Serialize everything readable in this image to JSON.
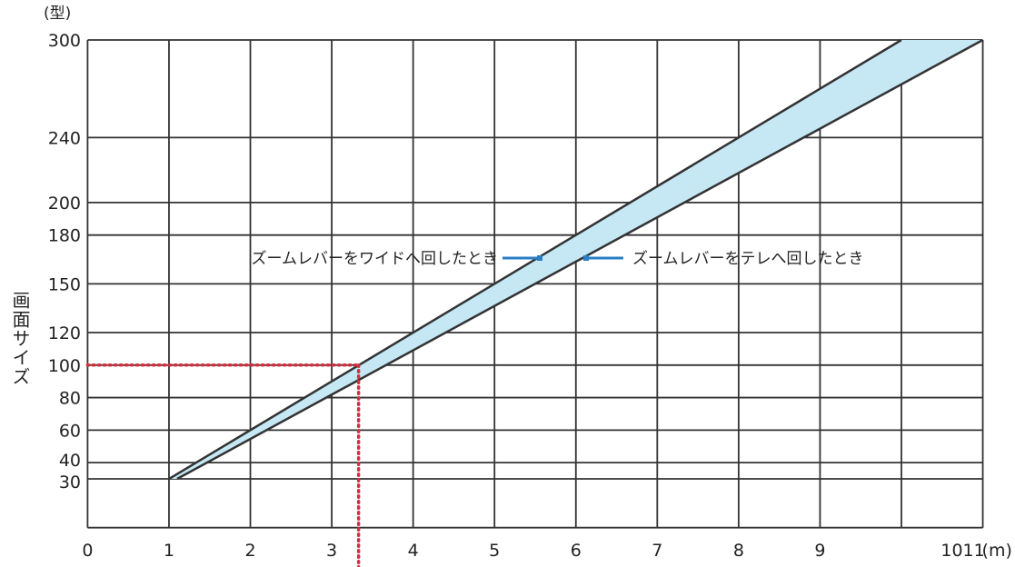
{
  "chart_data": {
    "type": "area",
    "title": "",
    "xlabel": "",
    "x_unit": "(m)",
    "ylabel": "画面サイズ",
    "y_unit": "(型)",
    "xlim": [
      0,
      11
    ],
    "ylim": [
      0,
      300
    ],
    "grid": true,
    "x_ticks": [
      "0",
      "1",
      "2",
      "3",
      "4",
      "5",
      "6",
      "7",
      "8",
      "9",
      "10",
      "11"
    ],
    "y_ticks": [
      30,
      40,
      60,
      80,
      100,
      120,
      150,
      180,
      200,
      240,
      300
    ],
    "series": [
      {
        "name": "ズームレバーをワイドへ回したとき",
        "x": [
          1,
          10
        ],
        "y": [
          30,
          300
        ]
      },
      {
        "name": "ズームレバーをテレへ回したとき",
        "x": [
          1.1,
          11
        ],
        "y": [
          30,
          300
        ]
      }
    ],
    "fill_color": "#c6e8f5",
    "line_color": "#333333",
    "annotation_color": "#2a7fc4",
    "reference": {
      "x": 3.33,
      "y": 100,
      "color": "#d03040",
      "style": "dotted"
    }
  }
}
